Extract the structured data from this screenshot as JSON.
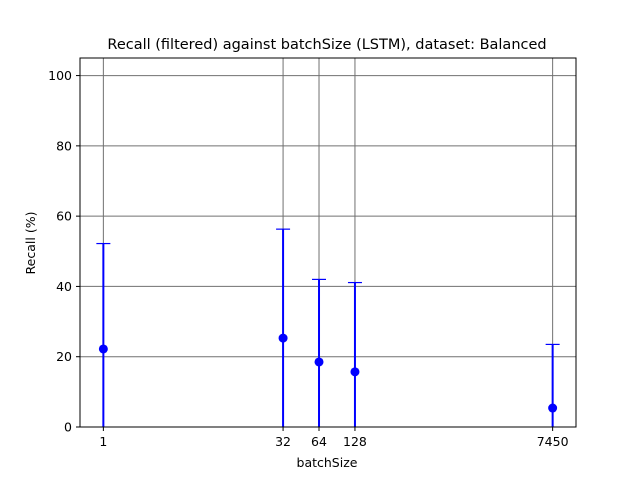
{
  "chart_data": {
    "type": "errorbar",
    "title": "Recall (filtered) against batchSize (LSTM), dataset: Balanced",
    "xlabel": "batchSize",
    "ylabel": "Recall (%)",
    "ylim": [
      0,
      105
    ],
    "yticks": [
      0,
      20,
      40,
      60,
      80,
      100
    ],
    "grid": true,
    "marker_color": "#0000ff",
    "grid_color": "#707070",
    "categories": [
      "1",
      "32",
      "64",
      "128",
      "7450"
    ],
    "x_positions": [
      1,
      6,
      7,
      8,
      13.5
    ],
    "xlim": [
      0.35,
      14.15
    ],
    "values": [
      22.2,
      25.3,
      18.5,
      15.7,
      5.4
    ],
    "err_upper": [
      52.2,
      56.3,
      42.0,
      41.1,
      23.5
    ],
    "err_lower": [
      0,
      0,
      0,
      0,
      0
    ]
  }
}
